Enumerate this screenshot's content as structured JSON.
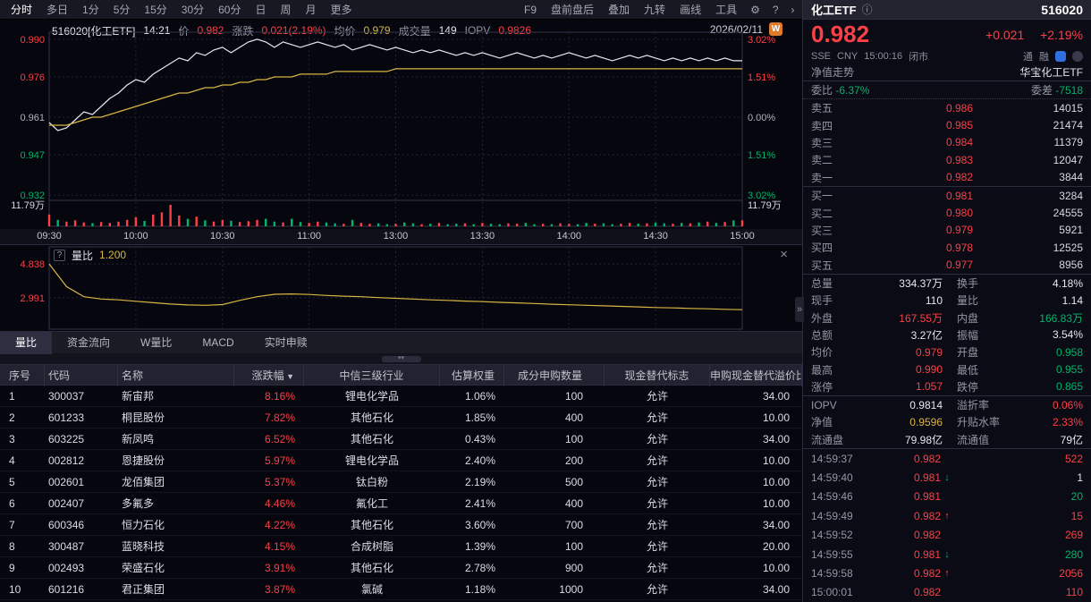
{
  "colors": {
    "up": "#fb4046",
    "down": "#00b46a",
    "yellow": "#d9b544",
    "flat": "#b0b0bc",
    "white": "#e6e6ee",
    "gray": "#9696a4",
    "grid": "#232338",
    "grid_strong": "#34344a",
    "price_line": "#e8e8ee",
    "avg_line": "#d9b544"
  },
  "menubar": {
    "left": [
      {
        "label": "分时",
        "active": true
      },
      {
        "label": "多日"
      },
      {
        "label": "1分"
      },
      {
        "label": "5分"
      },
      {
        "label": "15分"
      },
      {
        "label": "30分"
      },
      {
        "label": "60分"
      },
      {
        "label": "日"
      },
      {
        "label": "周"
      },
      {
        "label": "月"
      },
      {
        "label": "更多"
      }
    ],
    "right": [
      {
        "label": "F9"
      },
      {
        "label": "盘前盘后"
      },
      {
        "label": "叠加"
      },
      {
        "label": "九转"
      },
      {
        "label": "画线"
      },
      {
        "label": "工具"
      }
    ]
  },
  "chart_header": {
    "items": [
      {
        "label": "",
        "value": "516020[化工ETF]",
        "color": "white"
      },
      {
        "label": "",
        "value": "14:21",
        "color": "white"
      },
      {
        "label": "价",
        "value": "0.982",
        "color": "up"
      },
      {
        "label": "涨跌",
        "value": "0.021(2.19%)",
        "color": "up"
      },
      {
        "label": "均价",
        "value": "0.979",
        "color": "yellow"
      },
      {
        "label": "成交量",
        "value": "149",
        "color": "white"
      },
      {
        "label": "IOPV",
        "value": "0.9826",
        "color": "up"
      }
    ],
    "date": "2026/02/11",
    "badge": "W"
  },
  "chart_data": [
    {
      "type": "line",
      "title": "intraday price/avg with volume",
      "x_ticks": [
        "09:30",
        "10:00",
        "10:30",
        "11:00",
        "13:00",
        "13:30",
        "14:00",
        "14:30",
        "15:00"
      ],
      "left_axis": {
        "labels": [
          "0.990",
          "0.976",
          "0.961",
          "0.947",
          "0.932"
        ],
        "values": [
          0.99,
          0.976,
          0.961,
          0.947,
          0.932
        ],
        "colors": [
          "up",
          "up",
          "flat",
          "down",
          "down"
        ]
      },
      "right_axis": {
        "labels": [
          "3.02%",
          "1.51%",
          "0.00%",
          "1.51%",
          "3.02%"
        ]
      },
      "ylim": [
        0.9307,
        0.9913
      ],
      "prev_close": 0.961,
      "series": [
        {
          "name": "price",
          "color": "#e8e8ee",
          "values": [
            0.959,
            0.956,
            0.957,
            0.96,
            0.963,
            0.962,
            0.965,
            0.968,
            0.97,
            0.973,
            0.975,
            0.974,
            0.977,
            0.979,
            0.981,
            0.983,
            0.982,
            0.985,
            0.984,
            0.986,
            0.987,
            0.985,
            0.987,
            0.989,
            0.99,
            0.989,
            0.987,
            0.989,
            0.988,
            0.987,
            0.988,
            0.989,
            0.988,
            0.987,
            0.988,
            0.986,
            0.987,
            0.988,
            0.987,
            0.986,
            0.987,
            0.986,
            0.985,
            0.986,
            0.985,
            0.986,
            0.985,
            0.984,
            0.985,
            0.984,
            0.985,
            0.984,
            0.983,
            0.984,
            0.985,
            0.984,
            0.983,
            0.984,
            0.983,
            0.984,
            0.985,
            0.984,
            0.983,
            0.984,
            0.983,
            0.982,
            0.983,
            0.984,
            0.983,
            0.984,
            0.983,
            0.982,
            0.983,
            0.982,
            0.983,
            0.982,
            0.983,
            0.982,
            0.983,
            0.982,
            0.982
          ]
        },
        {
          "name": "avg",
          "color": "#d9b544",
          "values": [
            0.958,
            0.958,
            0.958,
            0.959,
            0.96,
            0.961,
            0.961,
            0.962,
            0.963,
            0.964,
            0.965,
            0.966,
            0.967,
            0.968,
            0.969,
            0.97,
            0.97,
            0.971,
            0.972,
            0.972,
            0.973,
            0.973,
            0.974,
            0.974,
            0.975,
            0.975,
            0.976,
            0.976,
            0.976,
            0.977,
            0.977,
            0.977,
            0.977,
            0.978,
            0.978,
            0.978,
            0.978,
            0.978,
            0.978,
            0.978,
            0.979,
            0.979,
            0.979,
            0.979,
            0.979,
            0.979,
            0.979,
            0.979,
            0.979,
            0.979,
            0.979,
            0.979,
            0.979,
            0.979,
            0.979,
            0.979,
            0.979,
            0.979,
            0.979,
            0.979,
            0.979,
            0.979,
            0.979,
            0.979,
            0.979,
            0.979,
            0.979,
            0.979,
            0.979,
            0.979,
            0.979,
            0.979,
            0.979,
            0.979,
            0.979,
            0.979,
            0.979,
            0.979,
            0.979,
            0.979,
            0.979
          ]
        }
      ],
      "volume": {
        "max_label": "11.79万",
        "values": [
          0.55,
          0.3,
          0.22,
          0.28,
          0.18,
          0.15,
          0.2,
          0.16,
          0.22,
          0.3,
          0.42,
          0.25,
          0.55,
          0.65,
          1.0,
          0.5,
          0.35,
          0.45,
          0.28,
          0.22,
          0.3,
          0.26,
          0.2,
          0.24,
          0.3,
          0.35,
          0.22,
          0.18,
          0.35,
          0.2,
          0.16,
          0.22,
          0.18,
          0.14,
          0.12,
          0.3,
          0.16,
          0.12,
          0.14,
          0.1,
          0.12,
          0.18,
          0.14,
          0.1,
          0.12,
          0.16,
          0.1,
          0.12,
          0.14,
          0.1,
          0.16,
          0.12,
          0.1,
          0.14,
          0.12,
          0.16,
          0.1,
          0.12,
          0.1,
          0.14,
          0.12,
          0.1,
          0.16,
          0.12,
          0.14,
          0.1,
          0.12,
          0.16,
          0.12,
          0.14,
          0.18,
          0.14,
          0.12,
          0.16,
          0.14,
          0.18,
          0.22,
          0.16,
          0.2,
          0.28,
          0.28
        ]
      }
    },
    {
      "type": "line",
      "name": "量比",
      "value_label": "1.200",
      "ylim": [
        1.47,
        5.48
      ],
      "axis_labels": [
        {
          "text": "4.838",
          "value": 4.838
        },
        {
          "text": "2.991",
          "value": 2.991
        }
      ],
      "series": [
        {
          "name": "volume-ratio",
          "color": "#d9b544",
          "values": [
            4.84,
            3.6,
            3.05,
            2.92,
            2.88,
            2.8,
            2.72,
            2.65,
            2.6,
            2.58,
            2.62,
            2.85,
            3.05,
            3.18,
            3.2,
            3.17,
            3.12,
            3.08,
            3.05,
            3.0,
            2.96,
            2.92,
            2.88,
            2.85,
            2.81,
            2.78,
            2.74,
            2.71,
            2.68,
            2.64,
            2.61,
            2.58,
            2.55,
            2.52,
            2.49,
            2.46,
            2.44,
            2.41,
            2.39,
            2.36,
            2.34
          ]
        }
      ]
    }
  ],
  "tabs": [
    {
      "label": "量比",
      "active": true
    },
    {
      "label": "资金流向"
    },
    {
      "label": "W量比"
    },
    {
      "label": "MACD"
    },
    {
      "label": "实时申赎"
    }
  ],
  "table": {
    "headers": [
      "序号",
      "代码",
      "名称",
      "涨跌幅",
      "中信三级行业",
      "估算权重",
      "成分申购数量",
      "现金替代标志",
      "申购现金替代溢价比"
    ],
    "sorted_column": "涨跌幅",
    "rows": [
      [
        "1",
        "300037",
        "新宙邦",
        "8.16%",
        "锂电化学品",
        "1.06%",
        "100",
        "允许",
        "34.00"
      ],
      [
        "2",
        "601233",
        "桐昆股份",
        "7.82%",
        "其他石化",
        "1.85%",
        "400",
        "允许",
        "10.00"
      ],
      [
        "3",
        "603225",
        "新凤鸣",
        "6.52%",
        "其他石化",
        "0.43%",
        "100",
        "允许",
        "34.00"
      ],
      [
        "4",
        "002812",
        "恩捷股份",
        "5.97%",
        "锂电化学品",
        "2.40%",
        "200",
        "允许",
        "10.00"
      ],
      [
        "5",
        "002601",
        "龙佰集团",
        "5.37%",
        "钛白粉",
        "2.19%",
        "500",
        "允许",
        "10.00"
      ],
      [
        "6",
        "002407",
        "多氟多",
        "4.46%",
        "氟化工",
        "2.41%",
        "400",
        "允许",
        "10.00"
      ],
      [
        "7",
        "600346",
        "恒力石化",
        "4.22%",
        "其他石化",
        "3.60%",
        "700",
        "允许",
        "34.00"
      ],
      [
        "8",
        "300487",
        "蓝晓科技",
        "4.15%",
        "合成树脂",
        "1.39%",
        "100",
        "允许",
        "20.00"
      ],
      [
        "9",
        "002493",
        "荣盛石化",
        "3.91%",
        "其他石化",
        "2.78%",
        "900",
        "允许",
        "10.00"
      ],
      [
        "10",
        "601216",
        "君正集团",
        "3.87%",
        "氯碱",
        "1.18%",
        "1000",
        "允许",
        "34.00"
      ]
    ]
  },
  "panel": {
    "name": "化工ETF",
    "code": "516020",
    "price": "0.982",
    "change": "+0.021",
    "change_pct": "+2.19%",
    "exchange": "SSE",
    "currency": "CNY",
    "time": "15:00:16",
    "status": "闭市",
    "badges": [
      "通",
      "融"
    ],
    "nav_tab": "净值走势",
    "nav_name": "华宝化工ETF",
    "weibi_label": "委比",
    "weibi": "-6.37%",
    "weicha_label": "委差",
    "weicha": "-7518",
    "order_book": {
      "sells": [
        [
          "卖五",
          "0.986",
          "14015"
        ],
        [
          "卖四",
          "0.985",
          "21474"
        ],
        [
          "卖三",
          "0.984",
          "11379"
        ],
        [
          "卖二",
          "0.983",
          "12047"
        ],
        [
          "卖一",
          "0.982",
          "3844"
        ]
      ],
      "buys": [
        [
          "买一",
          "0.981",
          "3284"
        ],
        [
          "买二",
          "0.980",
          "24555"
        ],
        [
          "买三",
          "0.979",
          "5921"
        ],
        [
          "买四",
          "0.978",
          "12525"
        ],
        [
          "买五",
          "0.977",
          "8956"
        ]
      ]
    },
    "stats": [
      {
        "l1": "总量",
        "v1": "334.37万",
        "c1": "white",
        "l2": "换手",
        "v2": "4.18%",
        "c2": "white"
      },
      {
        "l1": "现手",
        "v1": "110",
        "c1": "white",
        "l2": "量比",
        "v2": "1.14",
        "c2": "white"
      },
      {
        "l1": "外盘",
        "v1": "167.55万",
        "c1": "up",
        "l2": "内盘",
        "v2": "166.83万",
        "c2": "down"
      },
      {
        "l1": "总额",
        "v1": "3.27亿",
        "c1": "white",
        "l2": "振幅",
        "v2": "3.54%",
        "c2": "white"
      },
      {
        "l1": "均价",
        "v1": "0.979",
        "c1": "up",
        "l2": "开盘",
        "v2": "0.958",
        "c2": "down"
      },
      {
        "l1": "最高",
        "v1": "0.990",
        "c1": "up",
        "l2": "最低",
        "v2": "0.955",
        "c2": "down"
      },
      {
        "l1": "涨停",
        "v1": "1.057",
        "c1": "up",
        "l2": "跌停",
        "v2": "0.865",
        "c2": "down"
      }
    ],
    "iopv": [
      {
        "l1": "IOPV",
        "v1": "0.9814",
        "c1": "white",
        "l2": "溢折率",
        "v2": "0.06%",
        "c2": "up"
      },
      {
        "l1": "净值",
        "v1": "0.9596",
        "c1": "yellow",
        "l2": "升贴水率",
        "v2": "2.33%",
        "c2": "up"
      },
      {
        "l1": "流通盘",
        "v1": "79.98亿",
        "c1": "white",
        "l2": "流通值",
        "v2": "79亿",
        "c2": "white"
      }
    ],
    "ticks": [
      {
        "time": "14:59:37",
        "price": "0.982",
        "dir": "",
        "vol": "522",
        "vc": "up"
      },
      {
        "time": "14:59:40",
        "price": "0.981",
        "dir": "down",
        "vol": "1",
        "vc": "white"
      },
      {
        "time": "14:59:46",
        "price": "0.981",
        "dir": "",
        "vol": "20",
        "vc": "down"
      },
      {
        "time": "14:59:49",
        "price": "0.982",
        "dir": "up",
        "vol": "15",
        "vc": "up"
      },
      {
        "time": "14:59:52",
        "price": "0.982",
        "dir": "",
        "vol": "269",
        "vc": "up"
      },
      {
        "time": "14:59:55",
        "price": "0.981",
        "dir": "down",
        "vol": "280",
        "vc": "down"
      },
      {
        "time": "14:59:58",
        "price": "0.982",
        "dir": "up",
        "vol": "2056",
        "vc": "up"
      },
      {
        "time": "15:00:01",
        "price": "0.982",
        "dir": "",
        "vol": "110",
        "vc": "up"
      }
    ]
  }
}
